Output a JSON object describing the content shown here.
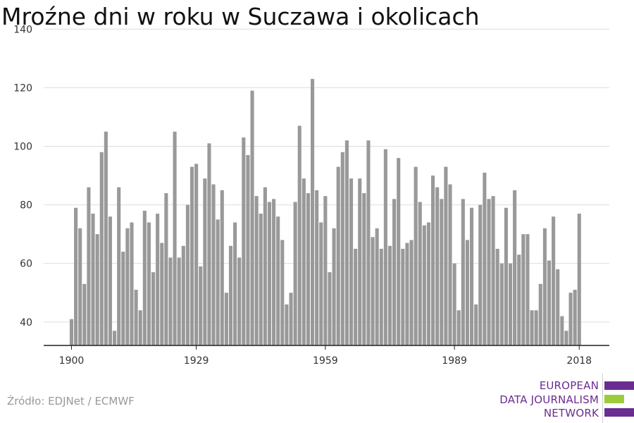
{
  "title": "Mroźne dni w roku w Suczawa i okolicach",
  "source": "Źródło: EDJNet / ECMWF",
  "logo": {
    "lines": [
      "EUROPEAN",
      "DATA JOURNALISM",
      "NETWORK"
    ],
    "colors": {
      "purple": "#6a2c91",
      "green": "#9ccc3c"
    }
  },
  "chart_data": {
    "type": "bar",
    "start_year": 1900,
    "years": [
      1900,
      1901,
      1902,
      1903,
      1904,
      1905,
      1906,
      1907,
      1908,
      1909,
      1910,
      1911,
      1912,
      1913,
      1914,
      1915,
      1916,
      1917,
      1918,
      1919,
      1920,
      1921,
      1922,
      1923,
      1924,
      1925,
      1926,
      1927,
      1928,
      1929,
      1930,
      1931,
      1932,
      1933,
      1934,
      1935,
      1936,
      1937,
      1938,
      1939,
      1940,
      1941,
      1942,
      1943,
      1944,
      1945,
      1946,
      1947,
      1948,
      1949,
      1950,
      1951,
      1952,
      1953,
      1954,
      1955,
      1956,
      1957,
      1958,
      1959,
      1960,
      1961,
      1962,
      1963,
      1964,
      1965,
      1966,
      1967,
      1968,
      1969,
      1970,
      1971,
      1972,
      1973,
      1974,
      1975,
      1976,
      1977,
      1978,
      1979,
      1980,
      1981,
      1982,
      1983,
      1984,
      1985,
      1986,
      1987,
      1988,
      1989,
      1990,
      1991,
      1992,
      1993,
      1994,
      1995,
      1996,
      1997,
      1998,
      1999,
      2000,
      2001,
      2002,
      2003,
      2004,
      2005,
      2006,
      2007,
      2008,
      2009,
      2010,
      2011,
      2012,
      2013,
      2014,
      2015,
      2016,
      2017,
      2018
    ],
    "values": [
      41,
      79,
      72,
      53,
      86,
      77,
      70,
      98,
      105,
      76,
      37,
      86,
      64,
      72,
      74,
      51,
      44,
      78,
      74,
      57,
      77,
      67,
      84,
      62,
      105,
      62,
      66,
      80,
      93,
      94,
      59,
      89,
      101,
      87,
      75,
      85,
      50,
      66,
      74,
      62,
      103,
      97,
      119,
      83,
      77,
      86,
      81,
      82,
      76,
      68,
      46,
      50,
      81,
      107,
      89,
      84,
      123,
      85,
      74,
      83,
      57,
      72,
      93,
      98,
      102,
      89,
      65,
      89,
      84,
      102,
      69,
      72,
      65,
      99,
      66,
      82,
      96,
      65,
      67,
      68,
      93,
      81,
      73,
      74,
      90,
      86,
      82,
      93,
      87,
      60,
      44,
      82,
      68,
      79,
      46,
      80,
      91,
      82,
      83,
      65,
      60,
      79,
      60,
      85,
      63,
      70,
      70,
      44,
      44,
      53,
      72,
      61,
      76,
      58,
      42,
      37,
      50,
      51,
      77
    ],
    "x_ticks": [
      "1900",
      "1929",
      "1959",
      "1989",
      "2018"
    ],
    "y_ticks": [
      40,
      60,
      80,
      100,
      120,
      140
    ],
    "ylim": [
      32,
      142
    ],
    "xlabel": "",
    "ylabel": "",
    "grid": true,
    "bar_color": "#999999",
    "grid_color": "#dddddd"
  }
}
